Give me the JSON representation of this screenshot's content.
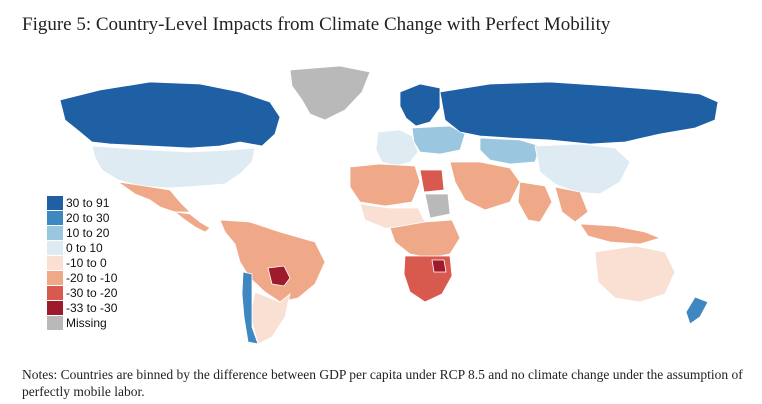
{
  "figure": {
    "title": "Figure 5: Country-Level Impacts from Climate Change with Perfect Mobility"
  },
  "legend": {
    "items": [
      {
        "label": "30 to 91",
        "color": "#1f5fa3"
      },
      {
        "label": "20 to 30",
        "color": "#3f87c1"
      },
      {
        "label": "10 to 20",
        "color": "#9ac6e0"
      },
      {
        "label": "0 to 10",
        "color": "#deebf3"
      },
      {
        "label": "-10 to 0",
        "color": "#f9e0d3"
      },
      {
        "label": "-20 to -10",
        "color": "#efa989"
      },
      {
        "label": "-30 to -20",
        "color": "#d85a4f"
      },
      {
        "label": "-33 to -30",
        "color": "#9e1b2e"
      },
      {
        "label": "Missing",
        "color": "#b9b9b9"
      }
    ]
  },
  "regions": [
    {
      "name": "canada",
      "bin": "30 to 91"
    },
    {
      "name": "usa",
      "bin": "0 to 10"
    },
    {
      "name": "mexico",
      "bin": "-20 to -10"
    },
    {
      "name": "central-america",
      "bin": "-20 to -10"
    },
    {
      "name": "south-america-north",
      "bin": "-20 to -10"
    },
    {
      "name": "paraguay",
      "bin": "-33 to -30"
    },
    {
      "name": "southern-cone",
      "bin": "-10 to 0"
    },
    {
      "name": "chile",
      "bin": "20 to 30"
    },
    {
      "name": "greenland",
      "bin": "Missing"
    },
    {
      "name": "western-europe",
      "bin": "0 to 10"
    },
    {
      "name": "scandinavia",
      "bin": "30 to 91"
    },
    {
      "name": "central-europe",
      "bin": "10 to 20"
    },
    {
      "name": "russia",
      "bin": "30 to 91"
    },
    {
      "name": "central-asia",
      "bin": "10 to 20"
    },
    {
      "name": "china",
      "bin": "0 to 10"
    },
    {
      "name": "middle-east",
      "bin": "-20 to -10"
    },
    {
      "name": "egypt",
      "bin": "-30 to -20"
    },
    {
      "name": "north-africa",
      "bin": "-20 to -10"
    },
    {
      "name": "sahel",
      "bin": "-10 to 0"
    },
    {
      "name": "sudan",
      "bin": "Missing"
    },
    {
      "name": "central-africa",
      "bin": "-20 to -10"
    },
    {
      "name": "southern-africa",
      "bin": "-30 to -20"
    },
    {
      "name": "zimbabwe",
      "bin": "-33 to -30"
    },
    {
      "name": "india",
      "bin": "-20 to -10"
    },
    {
      "name": "southeast-asia",
      "bin": "-20 to -10"
    },
    {
      "name": "indonesia",
      "bin": "-20 to -10"
    },
    {
      "name": "australia",
      "bin": "-10 to 0"
    },
    {
      "name": "new-zealand",
      "bin": "20 to 30"
    }
  ],
  "notes": "Notes: Countries are binned by the difference between GDP per capita under RCP 8.5 and no climate change under the assumption of perfectly mobile labor."
}
